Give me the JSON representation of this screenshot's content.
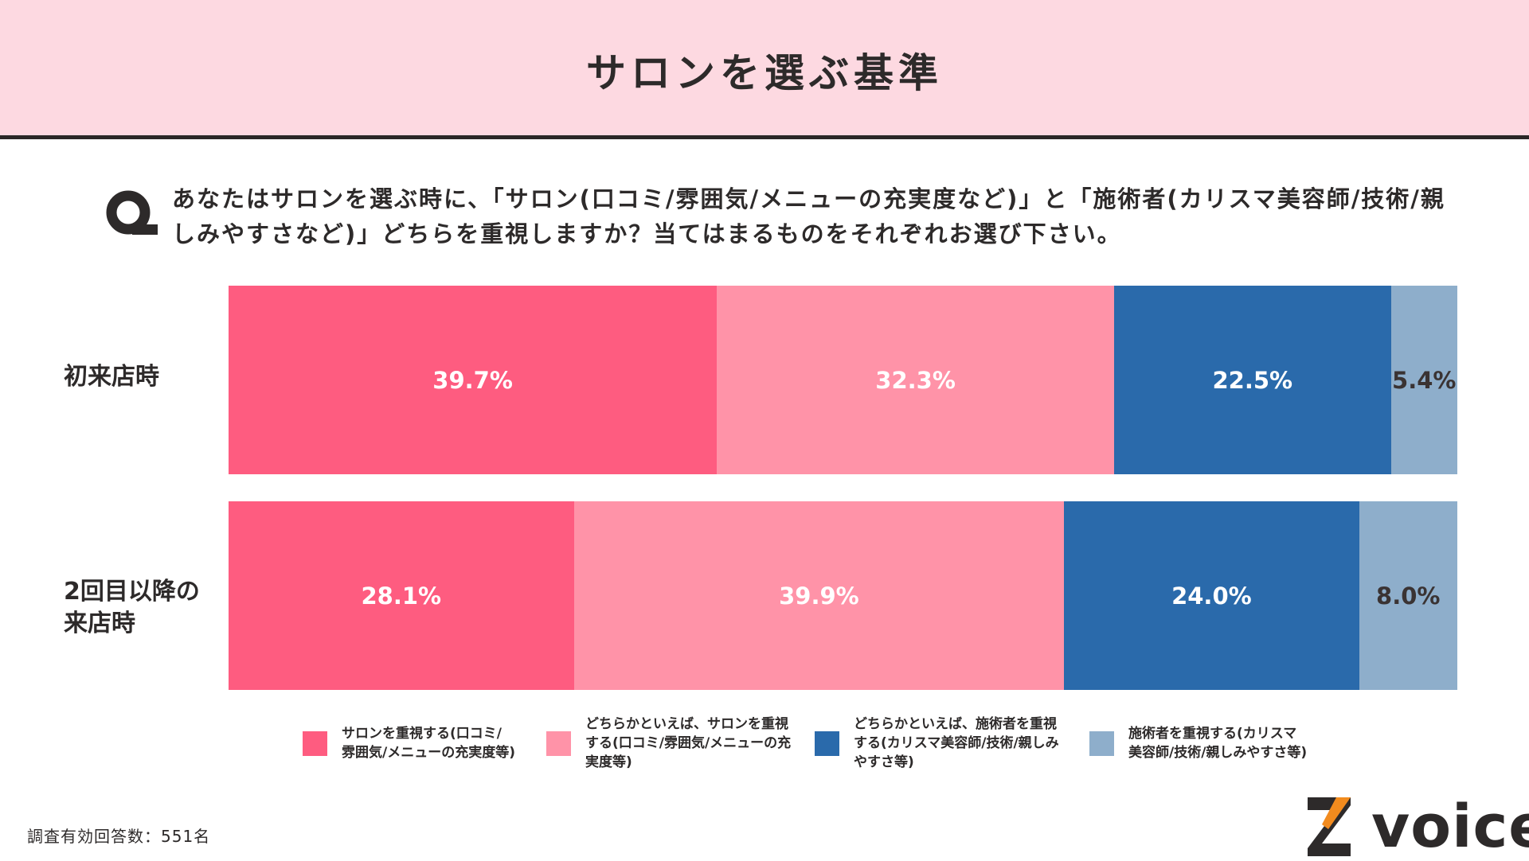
{
  "header": {
    "title": "サロンを選ぶ基準"
  },
  "question": {
    "marker": "Q",
    "text": "あなたはサロンを選ぶ時に、「サロン(口コミ/雰囲気/メニューの充実度など)」と「施術者(カリスマ美容師/技術/親しみやすさなど)」どちらを重視しますか？当てはまるものをそれぞれお選び下さい。"
  },
  "chart_data": {
    "type": "bar",
    "orientation": "horizontal",
    "stacked": true,
    "categories": [
      "初来店時",
      "2回目以降の来店時"
    ],
    "series": [
      {
        "name": "サロンを重視する(口コミ/雰囲気/メニューの充実度等)",
        "color": "#fe5c80",
        "values": [
          39.7,
          28.1
        ],
        "labels": [
          "39.7%",
          "28.1%"
        ],
        "label_color": "#ffffff"
      },
      {
        "name": "どちらかといえば、サロンを重視する(口コミ/雰囲気/メニューの充実度等)",
        "color": "#ff93a8",
        "values": [
          32.3,
          39.9
        ],
        "labels": [
          "32.3%",
          "39.9%"
        ],
        "label_color": "#ffffff"
      },
      {
        "name": "どちらかといえば、施術者を重視する(カリスマ美容師/技術/親しみやすさ等)",
        "color": "#2a6aab",
        "values": [
          22.5,
          24.0
        ],
        "labels": [
          "22.5%",
          "24.0%"
        ],
        "label_color": "#ffffff"
      },
      {
        "name": "施術者を重視する(カリスマ美容師/技術/親しみやすさ等)",
        "color": "#8eaecb",
        "values": [
          5.4,
          8.0
        ],
        "labels": [
          "5.4%",
          "8.0%"
        ],
        "label_color": "#3a3333"
      }
    ],
    "xlim": [
      0,
      100
    ],
    "legend_position": "bottom"
  },
  "row_labels": [
    "初来店時",
    "2回目以降の\n来店時"
  ],
  "legend": [
    "サロンを重視する(口コミ/\n雰囲気/メニューの充実度等)",
    "どちらかといえば、サロンを重視\nする(口コミ/雰囲気/メニューの充\n実度等)",
    "どちらかといえば、施術者を重視\nする(カリスマ美容師/技術/親しみ\nやすさ等)",
    "施術者を重視する(カリスマ\n美容師/技術/親しみやすさ等)"
  ],
  "footer": {
    "note": "調査有効回答数：551名"
  },
  "brand": {
    "name": "voice",
    "accent": "#f28b1e",
    "dark": "#2d2a2a"
  }
}
